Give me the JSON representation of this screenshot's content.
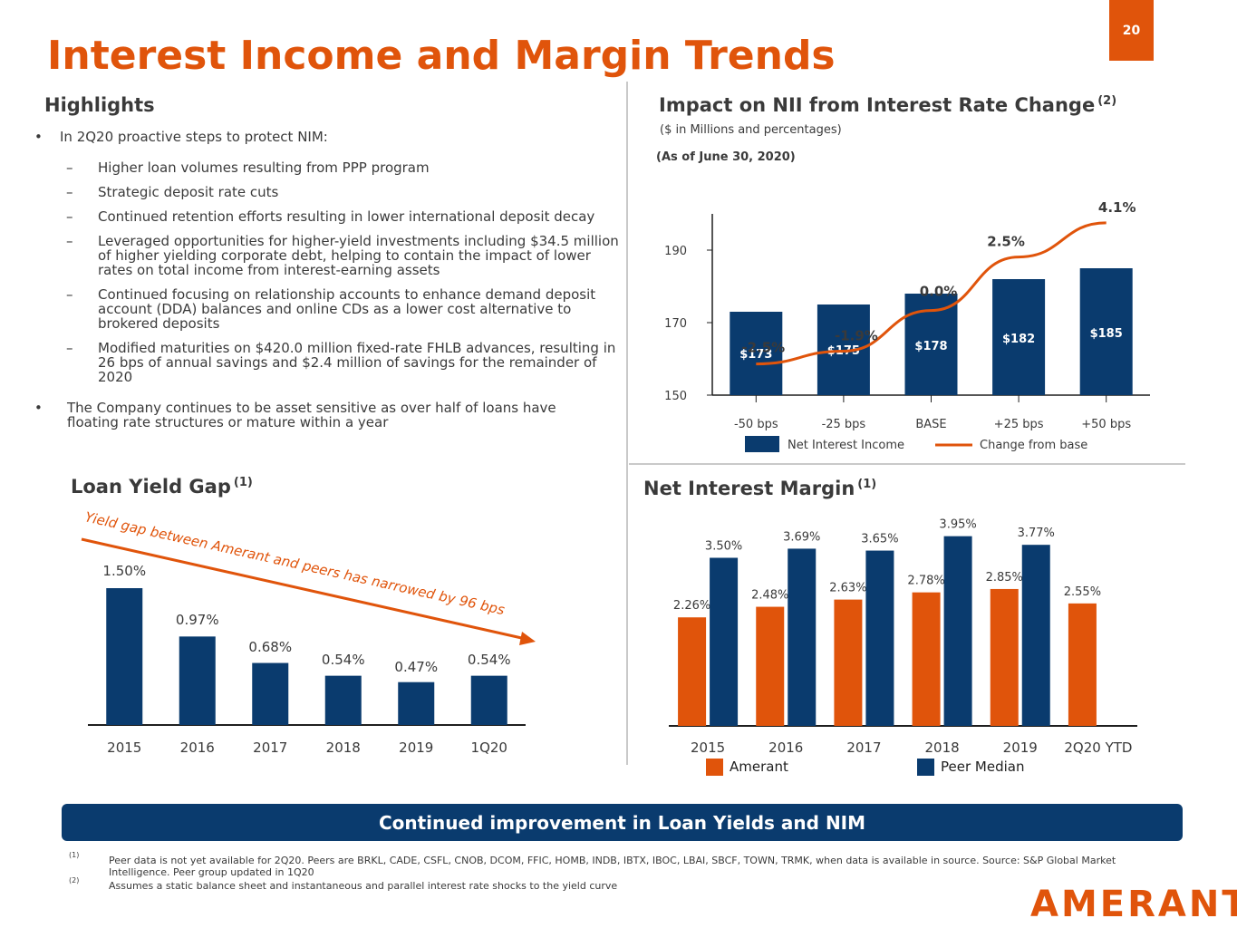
{
  "page": {
    "title": "Interest Income and Margin Trends",
    "number": "20",
    "banner": "Continued improvement in Loan Yields and NIM",
    "logo": "AMERANT"
  },
  "highlights": {
    "heading": "Highlights",
    "bullet_symbol": "•",
    "dash_symbol": "–",
    "bullet1": "In 2Q20 proactive steps to protect  NIM:",
    "sub": [
      "Higher loan volumes resulting from PPP program",
      "Strategic deposit rate cuts",
      "Continued retention efforts resulting in lower international deposit decay",
      "Leveraged opportunities for higher-yield investments including $34.5 million of higher yielding corporate debt, helping to contain the impact of lower rates on total income from interest-earning assets",
      "Continued focusing on relationship accounts to enhance demand deposit account (DDA) balances and online CDs as a lower cost alternative to brokered deposits",
      "Modified maturities on $420.0 million fixed-rate FHLB advances, resulting in 26 bps of annual savings and $2.4 million of savings for the remainder of 2020"
    ],
    "bullet2": "The Company continues to be asset sensitive as over half of loans have floating rate structures or mature within a year"
  },
  "nii_section": {
    "heading": "Impact on NII from Interest Rate Change",
    "heading_sup": "(2)",
    "subtitle": "($ in Millions and percentages)",
    "as_of": "(As of June 30, 2020)"
  },
  "loan_section": {
    "heading": "Loan Yield Gap",
    "heading_sup": "(1)"
  },
  "nim_section": {
    "heading": "Net Interest Margin",
    "heading_sup": "(1)"
  },
  "colors": {
    "orange": "#e0540b",
    "navy": "#0a3b6e",
    "text": "#3a3a3a"
  },
  "chart_data": [
    {
      "type": "bar",
      "id": "nii",
      "categories": [
        "-50 bps",
        "-25 bps",
        "BASE",
        "+25 bps",
        "+50 bps"
      ],
      "ylim": [
        150,
        200
      ],
      "yticks": [
        150,
        170,
        190
      ],
      "series": [
        {
          "name": "Net Interest Income",
          "values": [
            173,
            175,
            178,
            182,
            185
          ],
          "labels": [
            "$173",
            "$175",
            "$178",
            "$182",
            "$185"
          ]
        },
        {
          "name": "Change from base",
          "type": "line",
          "values": [
            -2.5,
            -1.9,
            0.0,
            2.5,
            4.1
          ],
          "labels": [
            "-2.5%",
            "-1.9%",
            "0.0%",
            "2.5%",
            "4.1%"
          ]
        }
      ],
      "legend": "bottom"
    },
    {
      "type": "bar",
      "id": "loan_yield_gap",
      "categories": [
        "2015",
        "2016",
        "2017",
        "2018",
        "2019",
        "1Q20"
      ],
      "values": [
        1.5,
        0.97,
        0.68,
        0.54,
        0.47,
        0.54
      ],
      "labels": [
        "1.50%",
        "0.97%",
        "0.68%",
        "0.54%",
        "0.47%",
        "0.54%"
      ],
      "annotation": "Yield gap between Amerant and peers has narrowed by 96 bps"
    },
    {
      "type": "bar",
      "id": "nim",
      "categories": [
        "2015",
        "2016",
        "2017",
        "2018",
        "2019",
        "2Q20 YTD"
      ],
      "series": [
        {
          "name": "Amerant",
          "values": [
            2.26,
            2.48,
            2.63,
            2.78,
            2.85,
            2.55
          ],
          "labels": [
            "2.26%",
            "2.48%",
            "2.63%",
            "2.78%",
            "2.85%",
            "2.55%"
          ]
        },
        {
          "name": "Peer Median",
          "values": [
            3.5,
            3.69,
            3.65,
            3.95,
            3.77,
            null
          ],
          "labels": [
            "3.50%",
            "3.69%",
            "3.65%",
            "3.95%",
            "3.77%",
            ""
          ]
        }
      ],
      "legend": "bottom"
    }
  ],
  "footnotes": [
    {
      "mark": "(1)",
      "text": "Peer data is not yet available for 2Q20. Peers are BRKL, CADE, CSFL, CNOB, DCOM, FFIC, HOMB, INDB, IBTX, IBOC, LBAI, SBCF, TOWN, TRMK, when data is available in source. Source: S&P Global Market Intelligence.  Peer group updated in 1Q20"
    },
    {
      "mark": "(2)",
      "text": "Assumes a static balance sheet and instantaneous and parallel interest rate shocks to the yield curve"
    }
  ]
}
